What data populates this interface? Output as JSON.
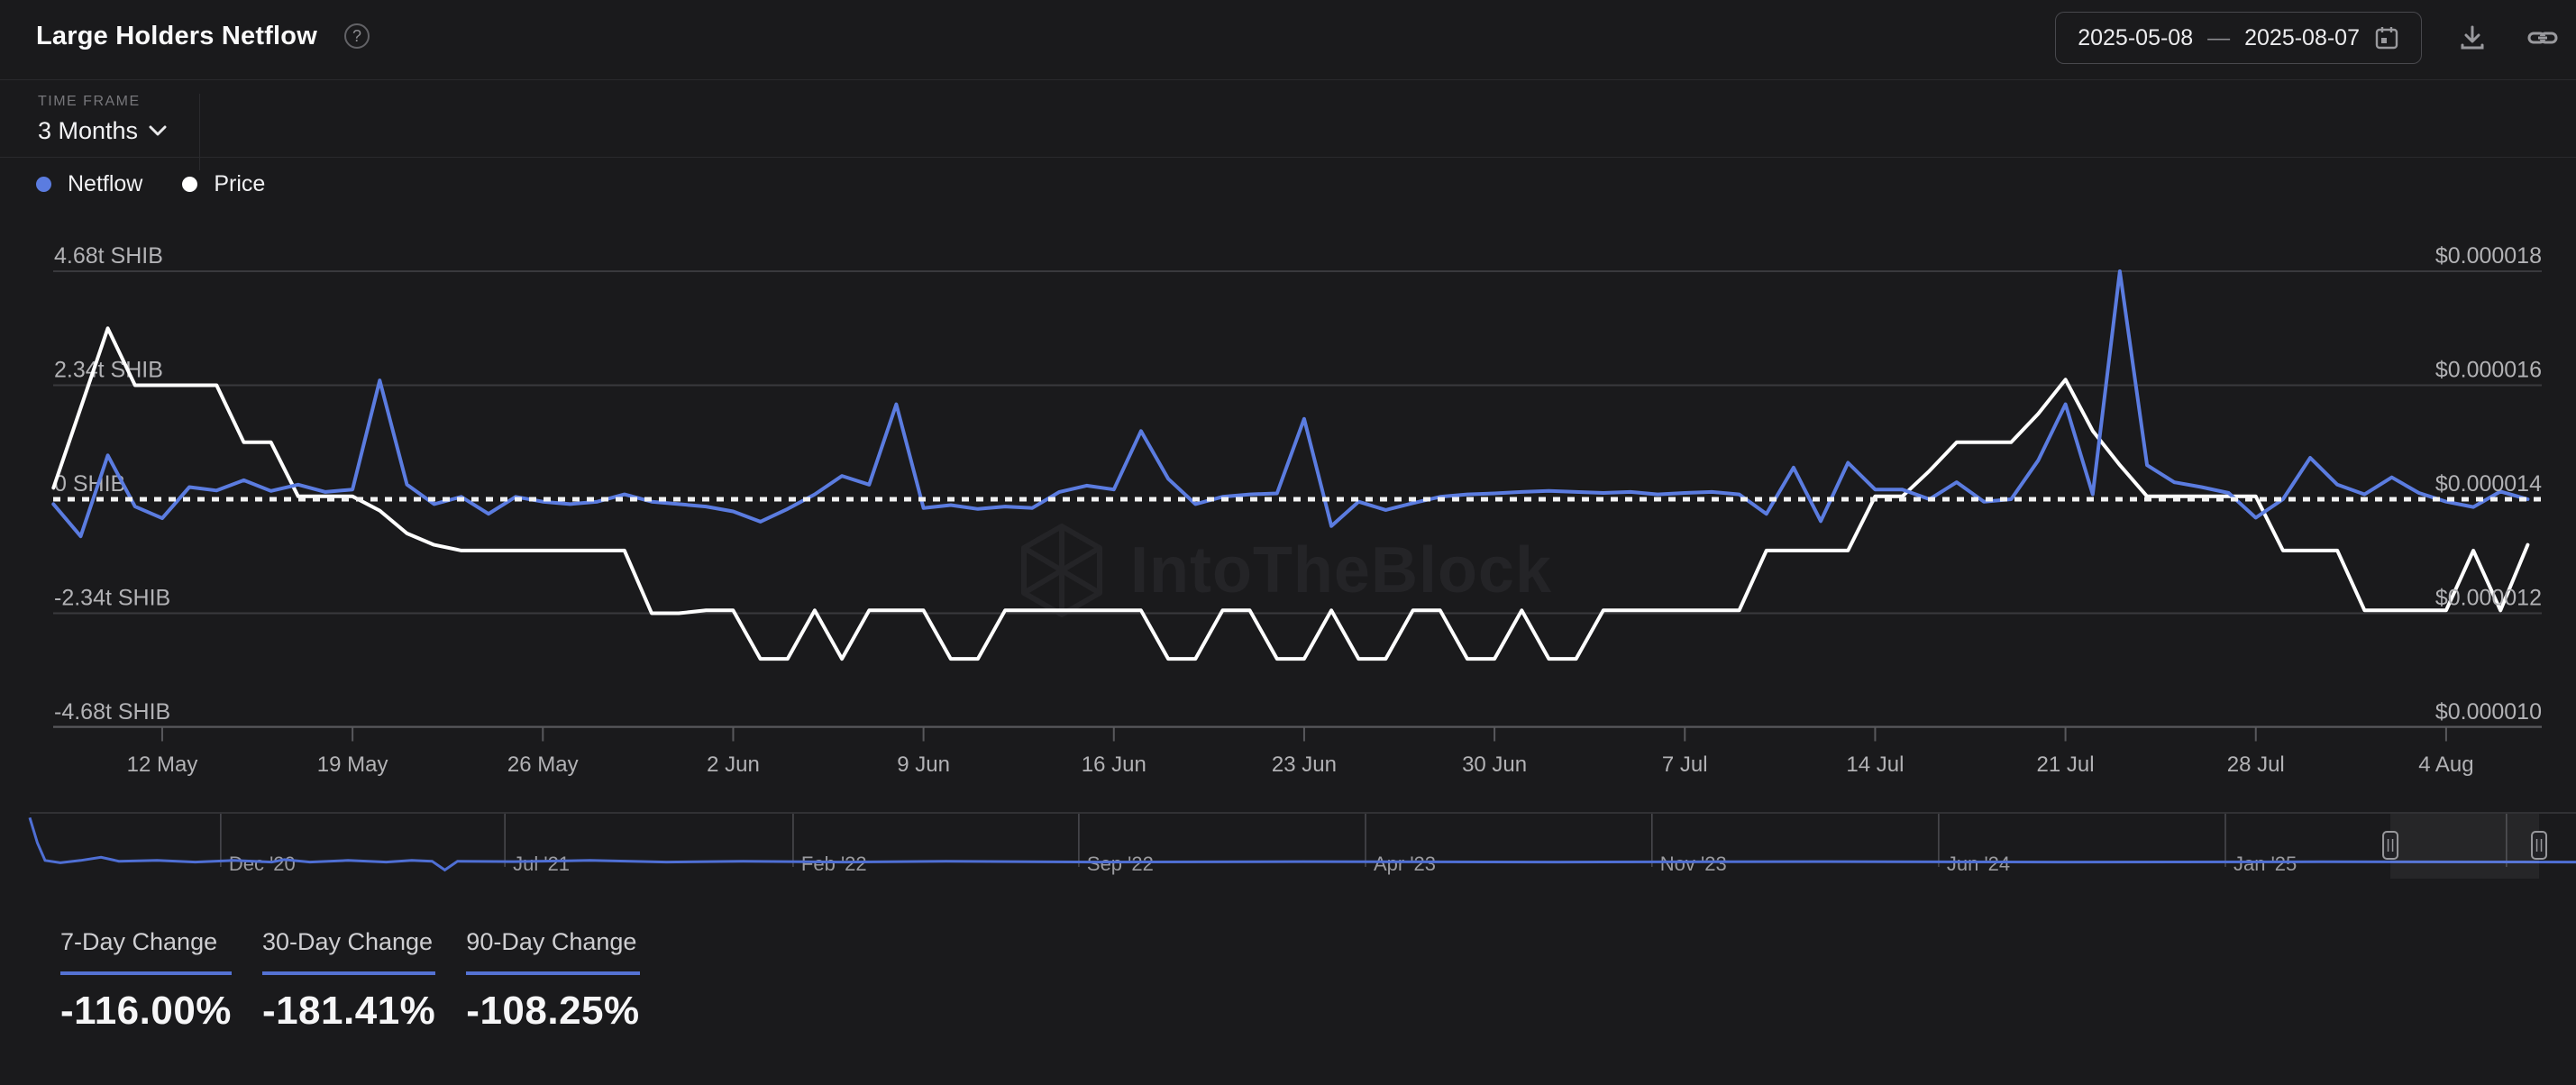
{
  "header": {
    "title": "Large Holders Netflow",
    "help_glyph": "?",
    "date_range": {
      "start": "2025-05-08",
      "separator": "—",
      "end": "2025-08-07"
    }
  },
  "toolbar": {
    "time_frame_label": "TIME FRAME",
    "time_frame_value": "3 Months"
  },
  "legend": [
    {
      "label": "Netflow",
      "color": "#5b7ce0"
    },
    {
      "label": "Price",
      "color": "#ffffff"
    }
  ],
  "watermark": "IntoTheBlock",
  "colors": {
    "background": "#1a1a1c",
    "accent_blue": "#5b7ce0",
    "navigator_blue": "#4f6fd4",
    "stat_underline": "#5472d3",
    "gridline": "#39393d",
    "axis_text": "#b2b2b5",
    "price_line": "#ffffff",
    "zero_dotted": "#f2f2f2"
  },
  "chart_data": {
    "type": "line",
    "title": "Large Holders Netflow",
    "x_start_date": "2025-05-08",
    "x_end_date": "2025-08-07",
    "x_tick_labels": [
      "12 May",
      "19 May",
      "26 May",
      "2 Jun",
      "9 Jun",
      "16 Jun",
      "23 Jun",
      "30 Jun",
      "7 Jul",
      "14 Jul",
      "21 Jul",
      "28 Jul",
      "4 Aug"
    ],
    "x_tick_day_indices": [
      4,
      11,
      18,
      25,
      32,
      39,
      46,
      53,
      60,
      67,
      74,
      81,
      88
    ],
    "left_axis": {
      "labels": [
        "4.68t SHIB",
        "2.34t SHIB",
        "0 SHIB",
        "-2.34t SHIB",
        "-4.68t SHIB"
      ],
      "values": [
        4.68,
        2.34,
        0,
        -2.34,
        -4.68
      ],
      "unit": "trillion SHIB"
    },
    "right_axis": {
      "labels": [
        "$0.000018",
        "$0.000016",
        "$0.000014",
        "$0.000012",
        "$0.000010"
      ],
      "values": [
        18,
        16,
        14,
        12,
        10
      ],
      "unit": "USD x 1e-6"
    },
    "zero_line_dotted": true,
    "legend_position": "top-left",
    "series": [
      {
        "name": "Netflow",
        "axis": "left",
        "color": "#5b7ce0",
        "unit": "trillion SHIB",
        "values": [
          -0.1,
          -0.76,
          0.9,
          -0.15,
          -0.39,
          0.25,
          0.18,
          0.39,
          0.17,
          0.3,
          0.15,
          0.2,
          2.44,
          0.3,
          -0.1,
          0.05,
          -0.3,
          0.05,
          -0.05,
          -0.1,
          -0.05,
          0.1,
          -0.05,
          -0.1,
          -0.15,
          -0.25,
          -0.46,
          -0.2,
          0.1,
          0.48,
          0.3,
          1.95,
          -0.18,
          -0.12,
          -0.2,
          -0.15,
          -0.18,
          0.15,
          0.28,
          0.2,
          1.4,
          0.42,
          -0.1,
          0.05,
          0.1,
          0.12,
          1.65,
          -0.55,
          -0.05,
          -0.22,
          -0.08,
          0.05,
          0.1,
          0.12,
          0.15,
          0.17,
          0.15,
          0.13,
          0.15,
          0.1,
          0.13,
          0.15,
          0.1,
          -0.3,
          0.65,
          -0.45,
          0.75,
          0.2,
          0.2,
          0.0,
          0.35,
          -0.05,
          0.0,
          0.8,
          1.95,
          0.1,
          4.68,
          0.7,
          0.35,
          0.25,
          0.13,
          -0.38,
          0.0,
          0.85,
          0.3,
          0.1,
          0.45,
          0.13,
          -0.05,
          -0.16,
          0.16,
          0.0
        ]
      },
      {
        "name": "Price",
        "axis": "right",
        "color": "#ffffff",
        "unit": "USD x 1e-6",
        "values": [
          14.2,
          15.6,
          17.0,
          16.0,
          16.0,
          16.0,
          16.0,
          15.0,
          15.0,
          14.05,
          14.05,
          14.05,
          13.8,
          13.4,
          13.2,
          13.1,
          13.1,
          13.1,
          13.1,
          13.1,
          13.1,
          13.1,
          12.0,
          12.0,
          12.05,
          12.05,
          11.2,
          11.2,
          12.05,
          11.2,
          12.05,
          12.05,
          12.05,
          11.2,
          11.2,
          12.05,
          12.05,
          12.05,
          12.05,
          12.05,
          12.05,
          11.2,
          11.2,
          12.05,
          12.05,
          11.2,
          11.2,
          12.05,
          11.2,
          11.2,
          12.05,
          12.05,
          11.2,
          11.2,
          12.05,
          11.2,
          11.2,
          12.05,
          12.05,
          12.05,
          12.05,
          12.05,
          12.05,
          13.1,
          13.1,
          13.1,
          13.1,
          14.05,
          14.05,
          14.5,
          15.0,
          15.0,
          15.0,
          15.5,
          16.1,
          15.2,
          14.6,
          14.05,
          14.05,
          14.05,
          14.05,
          14.05,
          13.1,
          13.1,
          13.1,
          12.05,
          12.05,
          12.05,
          12.05,
          13.1,
          12.05,
          13.2
        ]
      }
    ]
  },
  "navigator": {
    "gridlines": [
      {
        "label": "Dec '20",
        "fx": 0.075
      },
      {
        "label": "Jul '21",
        "fx": 0.1866
      },
      {
        "label": "Feb '22",
        "fx": 0.2998
      },
      {
        "label": "Sep '22",
        "fx": 0.412
      },
      {
        "label": "Apr '23",
        "fx": 0.5246
      },
      {
        "label": "Nov '23",
        "fx": 0.6371
      },
      {
        "label": "Jun '24",
        "fx": 0.7497
      },
      {
        "label": "Jan '25",
        "fx": 0.8623
      },
      {
        "label": "",
        "fx": 0.9727
      }
    ],
    "selection": {
      "fx1": 0.9271,
      "fx2": 0.9855
    },
    "line_points": [
      [
        0,
        0.06
      ],
      [
        0.003,
        0.38
      ],
      [
        0.006,
        0.6
      ],
      [
        0.012,
        0.63
      ],
      [
        0.02,
        0.6
      ],
      [
        0.028,
        0.56
      ],
      [
        0.035,
        0.61
      ],
      [
        0.05,
        0.6
      ],
      [
        0.065,
        0.62
      ],
      [
        0.08,
        0.6
      ],
      [
        0.095,
        0.62
      ],
      [
        0.1,
        0.59
      ],
      [
        0.11,
        0.62
      ],
      [
        0.125,
        0.6
      ],
      [
        0.14,
        0.62
      ],
      [
        0.15,
        0.6
      ],
      [
        0.158,
        0.61
      ],
      [
        0.163,
        0.72
      ],
      [
        0.168,
        0.61
      ],
      [
        0.19,
        0.615
      ],
      [
        0.22,
        0.6
      ],
      [
        0.25,
        0.62
      ],
      [
        0.28,
        0.61
      ],
      [
        0.32,
        0.62
      ],
      [
        0.36,
        0.61
      ],
      [
        0.42,
        0.62
      ],
      [
        0.5,
        0.615
      ],
      [
        0.6,
        0.62
      ],
      [
        0.7,
        0.615
      ],
      [
        0.8,
        0.62
      ],
      [
        0.9,
        0.617
      ],
      [
        1.0,
        0.62
      ]
    ]
  },
  "stats": [
    {
      "label": "7-Day Change",
      "value": "-116.00%"
    },
    {
      "label": "30-Day Change",
      "value": "-181.41%"
    },
    {
      "label": "90-Day Change",
      "value": "-108.25%"
    }
  ]
}
